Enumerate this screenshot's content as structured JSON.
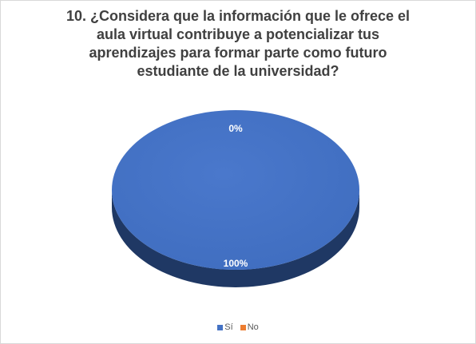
{
  "chart_data": {
    "type": "pie",
    "title_lines": [
      "10. ¿Considera que la información que le ofrece el",
      "aula virtual contribuye a potencializar tus",
      "aprendizajes para formar parte como futuro",
      "estudiante de la universidad?"
    ],
    "categories": [
      "Sí",
      "No"
    ],
    "values": [
      100,
      0
    ],
    "data_labels": [
      "100%",
      "0%"
    ],
    "colors": [
      "#4472C4",
      "#ED7D31"
    ],
    "legend_position": "bottom",
    "style": "3d"
  }
}
